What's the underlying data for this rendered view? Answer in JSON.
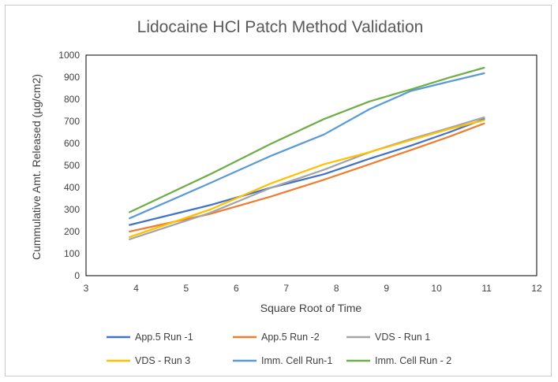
{
  "chart_data": {
    "type": "line",
    "title": "Lidocaine HCl Patch Method Validation",
    "xlabel": "Square Root of Time",
    "ylabel": "Cummulative Amt. Released (µg/cm2)",
    "xlim": [
      3,
      12
    ],
    "ylim": [
      0,
      1000
    ],
    "x_ticks": [
      "3",
      "4",
      "5",
      "6",
      "7",
      "8",
      "9",
      "10",
      "11",
      "12"
    ],
    "y_ticks": [
      "0",
      "100",
      "200",
      "300",
      "400",
      "500",
      "600",
      "700",
      "800",
      "900",
      "1000"
    ],
    "grid": false,
    "legend_position": "bottom",
    "series": [
      {
        "name": "App.5 Run -1",
        "color": "#4472c4",
        "x": [
          3.87,
          5.48,
          6.71,
          7.75,
          8.66,
          9.49,
          10.25,
          10.95
        ],
        "y": [
          230,
          320,
          400,
          460,
          530,
          590,
          650,
          710
        ]
      },
      {
        "name": "App.5 Run -2",
        "color": "#ed7d31",
        "x": [
          3.87,
          5.48,
          6.71,
          7.75,
          8.66,
          9.49,
          10.25,
          10.95
        ],
        "y": [
          200,
          280,
          360,
          435,
          505,
          570,
          630,
          690
        ]
      },
      {
        "name": "VDS - Run 1",
        "color": "#a5a5a5",
        "x": [
          3.87,
          5.48,
          6.71,
          7.75,
          8.66,
          9.49,
          10.25,
          10.95
        ],
        "y": [
          165,
          285,
          400,
          480,
          560,
          620,
          670,
          718
        ]
      },
      {
        "name": "VDS - Run 3",
        "color": "#ffc000",
        "x": [
          3.87,
          5.48,
          6.71,
          7.75,
          8.66,
          9.49,
          10.25,
          10.95
        ],
        "y": [
          175,
          300,
          420,
          505,
          560,
          615,
          665,
          705
        ]
      },
      {
        "name": "Imm. Cell Run-1",
        "color": "#5b9bd5",
        "x": [
          3.87,
          5.48,
          6.71,
          7.75,
          8.66,
          9.49,
          10.25,
          10.95
        ],
        "y": [
          260,
          420,
          545,
          640,
          755,
          838,
          880,
          918
        ]
      },
      {
        "name": "Imm. Cell Run - 2",
        "color": "#70ad47",
        "x": [
          3.87,
          5.48,
          6.71,
          7.75,
          8.66,
          9.49,
          10.25,
          10.95
        ],
        "y": [
          288,
          460,
          600,
          710,
          790,
          845,
          898,
          943
        ]
      }
    ]
  }
}
